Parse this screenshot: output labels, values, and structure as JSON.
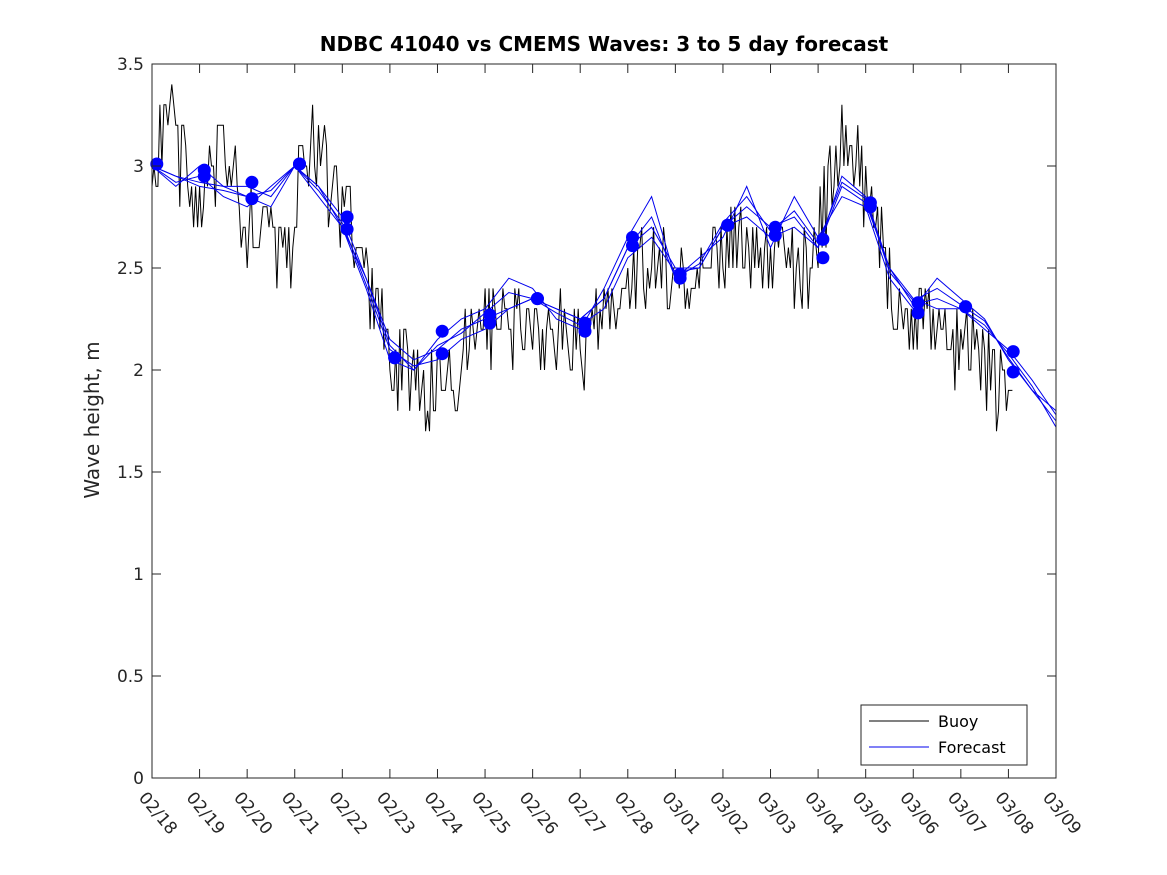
{
  "chart_data": {
    "type": "line",
    "title": "NDBC 41040 vs CMEMS Waves: 3 to 5 day forecast",
    "xlabel": "",
    "ylabel": "Wave height, m",
    "x_tick_labels": [
      "02/18",
      "02/19",
      "02/20",
      "02/21",
      "02/22",
      "02/23",
      "02/24",
      "02/25",
      "02/26",
      "02/27",
      "02/28",
      "03/01",
      "03/02",
      "03/03",
      "03/04",
      "03/05",
      "03/06",
      "03/07",
      "03/08",
      "03/09"
    ],
    "x_unit": "days from 02/18",
    "xlim": [
      0,
      19
    ],
    "ylim": [
      0,
      3.5
    ],
    "y_ticks": [
      0,
      0.5,
      1,
      1.5,
      2,
      2.5,
      3,
      3.5
    ],
    "y_tick_labels": [
      "0",
      "0.5",
      "1",
      "1.5",
      "2",
      "2.5",
      "3",
      "3.5"
    ],
    "grid": false,
    "legend": {
      "position": "bottom-right",
      "entries": [
        "Buoy",
        "Forecast"
      ]
    },
    "colors": {
      "buoy": "#000000",
      "forecast": "#0000ee",
      "marker": "#0000ff"
    },
    "series": [
      {
        "name": "Buoy",
        "anchors": [
          [
            0.0,
            3.0
          ],
          [
            0.3,
            3.3
          ],
          [
            0.6,
            3.0
          ],
          [
            0.9,
            2.85
          ],
          [
            1.2,
            2.9
          ],
          [
            1.4,
            3.0
          ],
          [
            1.5,
            3.2
          ],
          [
            1.7,
            2.9
          ],
          [
            2.0,
            2.75
          ],
          [
            2.3,
            2.7
          ],
          [
            2.6,
            2.6
          ],
          [
            2.9,
            2.6
          ],
          [
            3.1,
            2.95
          ],
          [
            3.4,
            3.1
          ],
          [
            3.7,
            2.95
          ],
          [
            4.1,
            2.75
          ],
          [
            4.4,
            2.5
          ],
          [
            4.7,
            2.3
          ],
          [
            5.0,
            2.1
          ],
          [
            5.3,
            2.0
          ],
          [
            5.6,
            1.95
          ],
          [
            5.8,
            1.85
          ],
          [
            6.0,
            1.95
          ],
          [
            6.3,
            1.95
          ],
          [
            6.6,
            2.15
          ],
          [
            6.9,
            2.2
          ],
          [
            7.2,
            2.25
          ],
          [
            7.5,
            2.2
          ],
          [
            7.8,
            2.25
          ],
          [
            8.1,
            2.2
          ],
          [
            8.4,
            2.2
          ],
          [
            8.7,
            2.15
          ],
          [
            9.0,
            2.1
          ],
          [
            9.3,
            2.2
          ],
          [
            9.6,
            2.3
          ],
          [
            9.9,
            2.3
          ],
          [
            10.2,
            2.45
          ],
          [
            10.5,
            2.6
          ],
          [
            10.8,
            2.5
          ],
          [
            11.1,
            2.4
          ],
          [
            11.4,
            2.35
          ],
          [
            11.7,
            2.5
          ],
          [
            12.0,
            2.55
          ],
          [
            12.3,
            2.65
          ],
          [
            12.6,
            2.55
          ],
          [
            12.9,
            2.55
          ],
          [
            13.2,
            2.6
          ],
          [
            13.5,
            2.5
          ],
          [
            13.8,
            2.45
          ],
          [
            14.1,
            2.75
          ],
          [
            14.3,
            3.0
          ],
          [
            14.6,
            3.2
          ],
          [
            14.8,
            3.1
          ],
          [
            15.0,
            2.85
          ],
          [
            15.3,
            2.6
          ],
          [
            15.6,
            2.35
          ],
          [
            15.9,
            2.25
          ],
          [
            16.2,
            2.25
          ],
          [
            16.5,
            2.2
          ],
          [
            16.8,
            2.1
          ],
          [
            17.1,
            2.15
          ],
          [
            17.4,
            2.05
          ],
          [
            17.7,
            1.95
          ],
          [
            17.9,
            1.82
          ],
          [
            18.1,
            1.78
          ]
        ]
      },
      {
        "name": "Forecast",
        "members": [
          {
            "points": [
              [
                0.0,
                3.0
              ],
              [
                0.5,
                2.95
              ],
              [
                1.0,
                2.9
              ],
              [
                1.5,
                2.88
              ],
              [
                2.0,
                2.85
              ],
              [
                2.5,
                2.88
              ],
              [
                3.0,
                3.0
              ],
              [
                3.5,
                2.9
              ],
              [
                4.0,
                2.75
              ],
              [
                4.5,
                2.45
              ],
              [
                5.0,
                2.15
              ],
              [
                5.5,
                2.05
              ],
              [
                6.0,
                2.1
              ],
              [
                6.5,
                2.2
              ],
              [
                7.0,
                2.25
              ],
              [
                7.5,
                2.3
              ],
              [
                8.0,
                2.35
              ],
              [
                8.5,
                2.3
              ],
              [
                9.0,
                2.25
              ],
              [
                9.5,
                2.35
              ],
              [
                10.0,
                2.6
              ],
              [
                10.5,
                2.7
              ],
              [
                11.0,
                2.5
              ],
              [
                11.5,
                2.5
              ],
              [
                12.0,
                2.7
              ],
              [
                12.5,
                2.8
              ],
              [
                13.0,
                2.7
              ],
              [
                13.5,
                2.75
              ],
              [
                14.0,
                2.6
              ],
              [
                14.5,
                2.95
              ],
              [
                15.0,
                2.85
              ],
              [
                15.5,
                2.5
              ],
              [
                16.0,
                2.35
              ],
              [
                16.5,
                2.3
              ],
              [
                17.0,
                2.3
              ],
              [
                17.5,
                2.2
              ],
              [
                18.0,
                2.1
              ],
              [
                18.5,
                1.95
              ],
              [
                19.0,
                1.78
              ]
            ]
          },
          {
            "points": [
              [
                0.0,
                3.0
              ],
              [
                0.5,
                2.9
              ],
              [
                1.0,
                3.0
              ],
              [
                1.5,
                2.9
              ],
              [
                2.0,
                2.9
              ],
              [
                2.5,
                2.85
              ],
              [
                3.0,
                3.0
              ],
              [
                3.5,
                2.85
              ],
              [
                4.0,
                2.7
              ],
              [
                4.5,
                2.4
              ],
              [
                5.0,
                2.05
              ],
              [
                5.5,
                2.0
              ],
              [
                6.0,
                2.15
              ],
              [
                6.5,
                2.25
              ],
              [
                7.0,
                2.3
              ],
              [
                7.5,
                2.45
              ],
              [
                8.0,
                2.4
              ],
              [
                8.5,
                2.25
              ],
              [
                9.0,
                2.2
              ],
              [
                9.5,
                2.4
              ],
              [
                10.0,
                2.65
              ],
              [
                10.5,
                2.85
              ],
              [
                11.0,
                2.45
              ],
              [
                11.5,
                2.55
              ],
              [
                12.0,
                2.65
              ],
              [
                12.5,
                2.9
              ],
              [
                13.0,
                2.6
              ],
              [
                13.5,
                2.85
              ],
              [
                14.0,
                2.65
              ],
              [
                14.5,
                2.85
              ],
              [
                15.0,
                2.8
              ],
              [
                15.5,
                2.45
              ],
              [
                16.0,
                2.3
              ],
              [
                16.5,
                2.45
              ],
              [
                17.0,
                2.35
              ],
              [
                17.5,
                2.25
              ],
              [
                18.0,
                2.05
              ],
              [
                18.5,
                1.9
              ],
              [
                19.0,
                1.75
              ]
            ]
          },
          {
            "points": [
              [
                0.0,
                3.0
              ],
              [
                0.5,
                2.92
              ],
              [
                1.0,
                2.95
              ],
              [
                1.5,
                2.85
              ],
              [
                2.0,
                2.8
              ],
              [
                2.5,
                2.9
              ],
              [
                3.0,
                3.0
              ],
              [
                3.5,
                2.88
              ],
              [
                4.0,
                2.72
              ],
              [
                4.5,
                2.42
              ],
              [
                5.0,
                2.1
              ],
              [
                5.5,
                2.02
              ],
              [
                6.0,
                2.05
              ],
              [
                6.5,
                2.15
              ],
              [
                7.0,
                2.2
              ],
              [
                7.5,
                2.3
              ],
              [
                8.0,
                2.35
              ],
              [
                8.5,
                2.28
              ],
              [
                9.0,
                2.22
              ],
              [
                9.5,
                2.3
              ],
              [
                10.0,
                2.55
              ],
              [
                10.5,
                2.65
              ],
              [
                11.0,
                2.48
              ],
              [
                11.5,
                2.5
              ],
              [
                12.0,
                2.7
              ],
              [
                12.5,
                2.75
              ],
              [
                13.0,
                2.65
              ],
              [
                13.5,
                2.7
              ],
              [
                14.0,
                2.6
              ],
              [
                14.5,
                2.9
              ],
              [
                15.0,
                2.82
              ],
              [
                15.5,
                2.5
              ],
              [
                16.0,
                2.32
              ],
              [
                16.5,
                2.35
              ],
              [
                17.0,
                2.3
              ],
              [
                17.5,
                2.22
              ],
              [
                18.0,
                2.08
              ],
              [
                18.5,
                1.92
              ],
              [
                19.0,
                1.72
              ]
            ]
          },
          {
            "points": [
              [
                0.0,
                3.0
              ],
              [
                0.5,
                2.95
              ],
              [
                1.0,
                2.92
              ],
              [
                1.5,
                2.9
              ],
              [
                2.0,
                2.85
              ],
              [
                2.5,
                2.8
              ],
              [
                3.0,
                3.0
              ],
              [
                3.5,
                2.9
              ],
              [
                4.0,
                2.7
              ],
              [
                4.5,
                2.45
              ],
              [
                5.0,
                2.12
              ],
              [
                5.5,
                2.0
              ],
              [
                6.0,
                2.12
              ],
              [
                6.5,
                2.18
              ],
              [
                7.0,
                2.28
              ],
              [
                7.5,
                2.38
              ],
              [
                8.0,
                2.35
              ],
              [
                8.5,
                2.3
              ],
              [
                9.0,
                2.25
              ],
              [
                9.5,
                2.35
              ],
              [
                10.0,
                2.6
              ],
              [
                10.5,
                2.75
              ],
              [
                11.0,
                2.45
              ],
              [
                11.5,
                2.52
              ],
              [
                12.0,
                2.72
              ],
              [
                12.5,
                2.85
              ],
              [
                13.0,
                2.68
              ],
              [
                13.5,
                2.78
              ],
              [
                14.0,
                2.62
              ],
              [
                14.5,
                2.92
              ],
              [
                15.0,
                2.84
              ],
              [
                15.5,
                2.48
              ],
              [
                16.0,
                2.34
              ],
              [
                16.5,
                2.4
              ],
              [
                17.0,
                2.32
              ],
              [
                17.5,
                2.24
              ],
              [
                18.0,
                2.06
              ],
              [
                18.5,
                1.9
              ],
              [
                19.0,
                1.8
              ]
            ]
          }
        ],
        "markers": [
          [
            0.1,
            3.01
          ],
          [
            1.1,
            2.95
          ],
          [
            1.1,
            2.98
          ],
          [
            2.1,
            2.92
          ],
          [
            2.1,
            2.84
          ],
          [
            3.1,
            3.01
          ],
          [
            3.1,
            3.01
          ],
          [
            4.1,
            2.75
          ],
          [
            4.1,
            2.69
          ],
          [
            5.1,
            2.06
          ],
          [
            5.1,
            2.06
          ],
          [
            6.1,
            2.19
          ],
          [
            6.1,
            2.08
          ],
          [
            7.1,
            2.27
          ],
          [
            7.1,
            2.23
          ],
          [
            8.1,
            2.35
          ],
          [
            8.1,
            2.35
          ],
          [
            9.1,
            2.23
          ],
          [
            9.1,
            2.19
          ],
          [
            10.1,
            2.65
          ],
          [
            10.1,
            2.61
          ],
          [
            11.1,
            2.47
          ],
          [
            11.1,
            2.45
          ],
          [
            12.1,
            2.71
          ],
          [
            12.1,
            2.71
          ],
          [
            13.1,
            2.7
          ],
          [
            13.1,
            2.66
          ],
          [
            14.1,
            2.64
          ],
          [
            14.1,
            2.55
          ],
          [
            15.1,
            2.82
          ],
          [
            15.1,
            2.8
          ],
          [
            16.1,
            2.33
          ],
          [
            16.1,
            2.28
          ],
          [
            17.1,
            2.31
          ],
          [
            17.1,
            2.31
          ],
          [
            18.1,
            2.09
          ],
          [
            18.1,
            1.99
          ]
        ]
      }
    ]
  }
}
